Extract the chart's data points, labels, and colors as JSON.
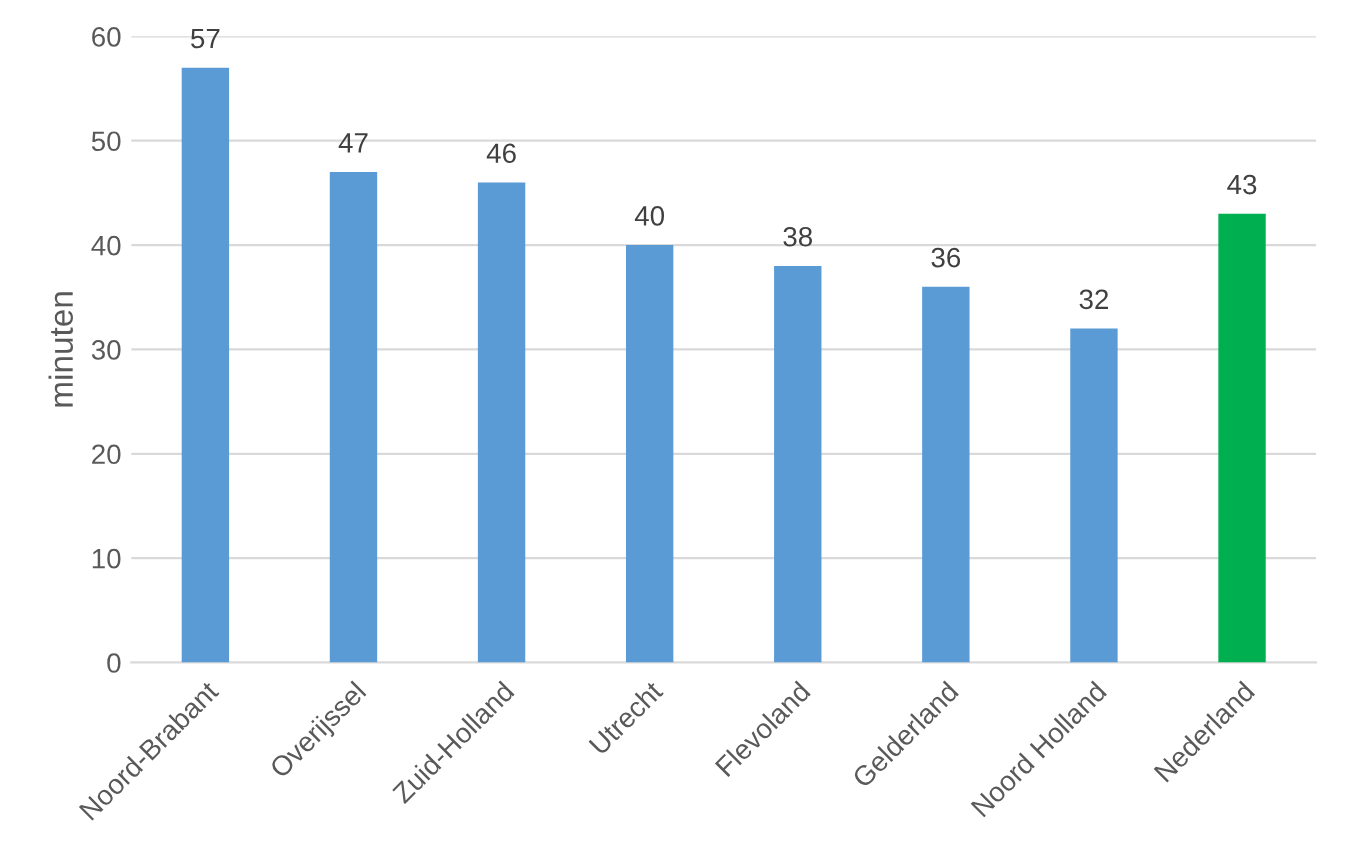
{
  "chart_data": {
    "type": "bar",
    "ylabel": "minuten",
    "categories": [
      "Noord-Brabant",
      "Overijssel",
      "Zuid-Holland",
      "Utrecht",
      "Flevoland",
      "Gelderland",
      "Noord Holland",
      "Nederland"
    ],
    "values": [
      57,
      47,
      46,
      40,
      38,
      36,
      32,
      43
    ],
    "colors": [
      "#5b9bd5",
      "#5b9bd5",
      "#5b9bd5",
      "#5b9bd5",
      "#5b9bd5",
      "#5b9bd5",
      "#5b9bd5",
      "#00b050"
    ],
    "ylim": [
      0,
      60
    ],
    "yticks": [
      0,
      10,
      20,
      30,
      40,
      50,
      60
    ],
    "grid": "y",
    "data_labels": true,
    "legend": false
  }
}
